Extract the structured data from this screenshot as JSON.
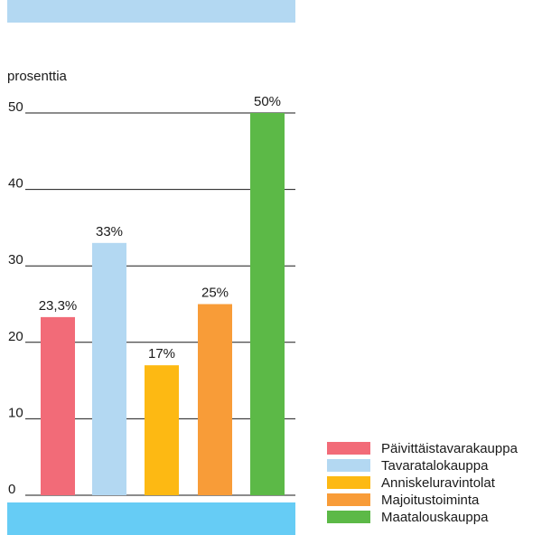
{
  "colors": {
    "top_band": "#b3d8f2",
    "bottom_band": "#66ccf5",
    "axis": "#1a1a1a"
  },
  "chart_data": {
    "type": "bar",
    "title": "",
    "xlabel": "",
    "ylabel": "prosenttia",
    "ylim": [
      0,
      50
    ],
    "yticks": [
      0,
      10,
      20,
      30,
      40,
      50
    ],
    "grid": true,
    "legend_position": "bottom-right",
    "categories": [
      "Päivittäistavarakauppa",
      "Tavaratalokauppa",
      "Anniskeluravintolat",
      "Majoitustoiminta",
      "Maatalouskauppa"
    ],
    "values": [
      23.3,
      33,
      17,
      25,
      50
    ],
    "value_labels": [
      "23,3%",
      "33%",
      "17%",
      "25%",
      "50%"
    ],
    "colors": [
      "#f26b78",
      "#b3d8f2",
      "#fdb913",
      "#f89c38",
      "#5cb947"
    ]
  }
}
